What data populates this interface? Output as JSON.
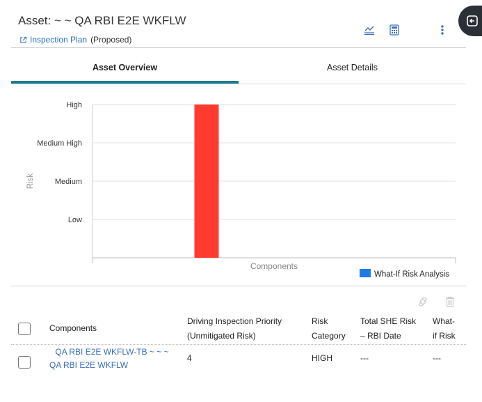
{
  "header": {
    "title": "Asset: ~ ~ QA RBI E2E WKFLW",
    "plan_link": "Inspection Plan",
    "plan_status": "(Proposed)"
  },
  "tabs": [
    {
      "label": "Asset Overview",
      "active": true
    },
    {
      "label": "Asset Details",
      "active": false
    }
  ],
  "chart_data": {
    "type": "bar",
    "ylabel": "Risk",
    "xlabel": "Components",
    "y_categories": [
      "Low",
      "Medium",
      "Medium High",
      "High"
    ],
    "categories": [
      "QA RBI E2E WKFLW-TB ~ ~ ~ QA RBI E2E WKFLW"
    ],
    "series": [
      {
        "name": "",
        "values": [
          "High"
        ],
        "color": "#ff3b30"
      }
    ],
    "legend": {
      "label": "What-If Risk Analysis",
      "color": "#1e7be6",
      "position": "bottom-right"
    },
    "grid": true
  },
  "table": {
    "columns": [
      "Components",
      "Driving Inspection Priority (Unmitigated Risk)",
      "Risk Category",
      "Total SHE Risk – RBI Date",
      "What-if Risk"
    ],
    "columns_lines": {
      "components": [
        "Components"
      ],
      "driving": [
        "Driving Inspection Priority",
        "(Unmitigated Risk)"
      ],
      "risk_category": [
        "Risk",
        "Category"
      ],
      "total_she": [
        "Total SHE Risk",
        "– RBI Date"
      ],
      "what_if": [
        "What-",
        "if Risk"
      ]
    },
    "rows": [
      {
        "component_lines": [
          "QA RBI E2E WKFLW-TB ~ ~ ~",
          "QA RBI E2E WKFLW"
        ],
        "driving_priority": "4",
        "risk_category": "HIGH",
        "total_she_risk": "---",
        "what_if_risk": "---"
      }
    ]
  },
  "icons": {
    "header_actions": [
      "chart-line-icon",
      "calculator-icon",
      "more-vertical-icon"
    ],
    "side_badge": "exit-arrow-icon",
    "table_actions": [
      "link-icon",
      "trash-icon"
    ]
  },
  "colors": {
    "accent": "#1b7b8f",
    "link": "#2a6fc9",
    "bar": "#ff3b30",
    "legend": "#1e7be6"
  }
}
